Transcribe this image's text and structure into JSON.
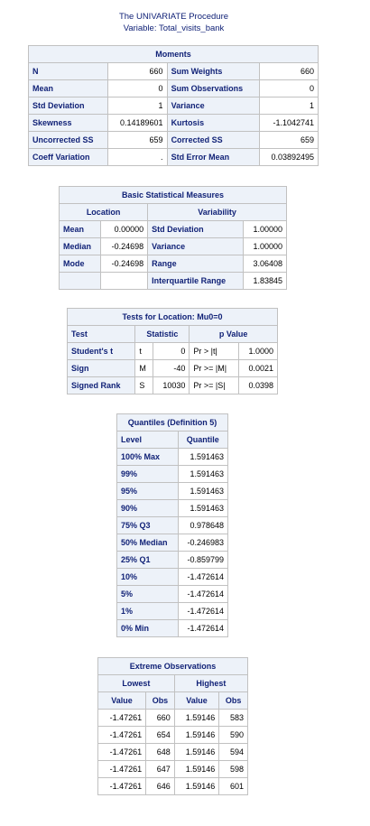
{
  "header": {
    "title": "The UNIVARIATE Procedure",
    "subtitle": "Variable: Total_visits_bank"
  },
  "moments": {
    "caption": "Moments",
    "rows": [
      [
        "N",
        "660",
        "Sum Weights",
        "660"
      ],
      [
        "Mean",
        "0",
        "Sum Observations",
        "0"
      ],
      [
        "Std Deviation",
        "1",
        "Variance",
        "1"
      ],
      [
        "Skewness",
        "0.14189601",
        "Kurtosis",
        "-1.1042741"
      ],
      [
        "Uncorrected SS",
        "659",
        "Corrected SS",
        "659"
      ],
      [
        "Coeff Variation",
        ".",
        "Std Error Mean",
        "0.03892495"
      ]
    ]
  },
  "basic": {
    "caption": "Basic Statistical Measures",
    "group_location": "Location",
    "group_variability": "Variability",
    "rows": [
      [
        "Mean",
        "0.00000",
        "Std Deviation",
        "1.00000"
      ],
      [
        "Median",
        "-0.24698",
        "Variance",
        "1.00000"
      ],
      [
        "Mode",
        "-0.24698",
        "Range",
        "3.06408"
      ],
      [
        "",
        "",
        "Interquartile Range",
        "1.83845"
      ]
    ]
  },
  "tests": {
    "caption": "Tests for Location: Mu0=0",
    "col_test": "Test",
    "col_statistic": "Statistic",
    "col_pvalue": "p Value",
    "rows": [
      [
        "Student's t",
        "t",
        "0",
        "Pr > |t|",
        "1.0000"
      ],
      [
        "Sign",
        "M",
        "-40",
        "Pr >= |M|",
        "0.0021"
      ],
      [
        "Signed Rank",
        "S",
        "10030",
        "Pr >= |S|",
        "0.0398"
      ]
    ]
  },
  "quantiles": {
    "caption": "Quantiles (Definition 5)",
    "col_level": "Level",
    "col_quantile": "Quantile",
    "rows": [
      [
        "100% Max",
        "1.591463"
      ],
      [
        "99%",
        "1.591463"
      ],
      [
        "95%",
        "1.591463"
      ],
      [
        "90%",
        "1.591463"
      ],
      [
        "75% Q3",
        "0.978648"
      ],
      [
        "50% Median",
        "-0.246983"
      ],
      [
        "25% Q1",
        "-0.859799"
      ],
      [
        "10%",
        "-1.472614"
      ],
      [
        "5%",
        "-1.472614"
      ],
      [
        "1%",
        "-1.472614"
      ],
      [
        "0% Min",
        "-1.472614"
      ]
    ]
  },
  "extreme": {
    "caption": "Extreme Observations",
    "group_lowest": "Lowest",
    "group_highest": "Highest",
    "col_value": "Value",
    "col_obs": "Obs",
    "rows": [
      [
        "-1.47261",
        "660",
        "1.59146",
        "583"
      ],
      [
        "-1.47261",
        "654",
        "1.59146",
        "590"
      ],
      [
        "-1.47261",
        "648",
        "1.59146",
        "594"
      ],
      [
        "-1.47261",
        "647",
        "1.59146",
        "598"
      ],
      [
        "-1.47261",
        "646",
        "1.59146",
        "601"
      ]
    ]
  }
}
